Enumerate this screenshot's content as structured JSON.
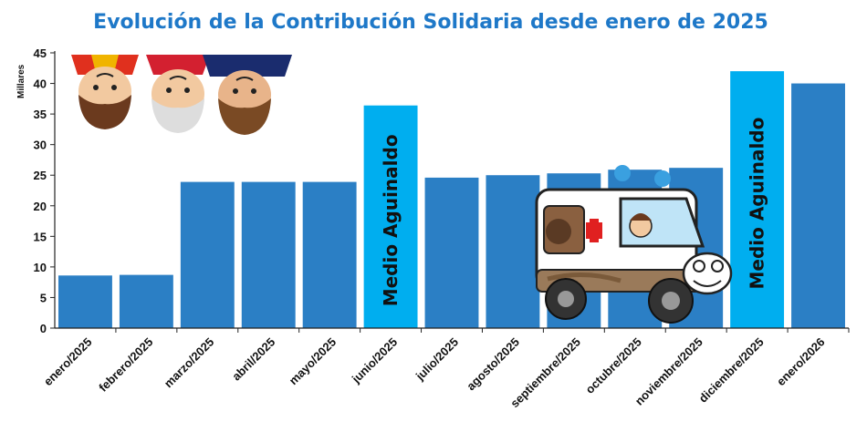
{
  "chart_data": {
    "type": "bar",
    "title": "Evolución de la Contribución Solidaria desde enero de 2025",
    "ylabel": "Millares",
    "xlabel": "",
    "ylim": [
      0,
      45
    ],
    "yticks": [
      0,
      5,
      10,
      15,
      20,
      25,
      30,
      35,
      40,
      45
    ],
    "grid": false,
    "categories": [
      "enero/2025",
      "febrero/2025",
      "marzo/2025",
      "abril/2025",
      "mayo/2025",
      "junio/2025",
      "julio/2025",
      "agosto/2025",
      "septiembre/2025",
      "octubre/2025",
      "noviembre/2025",
      "diciembre/2025",
      "enero/2026"
    ],
    "values": [
      8.6,
      8.7,
      23.9,
      23.9,
      23.9,
      36.4,
      24.6,
      25.0,
      25.3,
      25.9,
      26.2,
      42.0,
      40.0
    ],
    "highlighted": [
      false,
      false,
      false,
      false,
      false,
      true,
      false,
      false,
      false,
      false,
      false,
      true,
      false
    ],
    "annotations": [
      {
        "category": "junio/2025",
        "text": "Medio Aguinaldo"
      },
      {
        "category": "diciembre/2025",
        "text": "Medio Aguinaldo"
      }
    ],
    "colors": {
      "bar": "#2b7fc5",
      "highlight": "#00aeef",
      "title": "#1e78c8",
      "axis": "#222222"
    }
  }
}
